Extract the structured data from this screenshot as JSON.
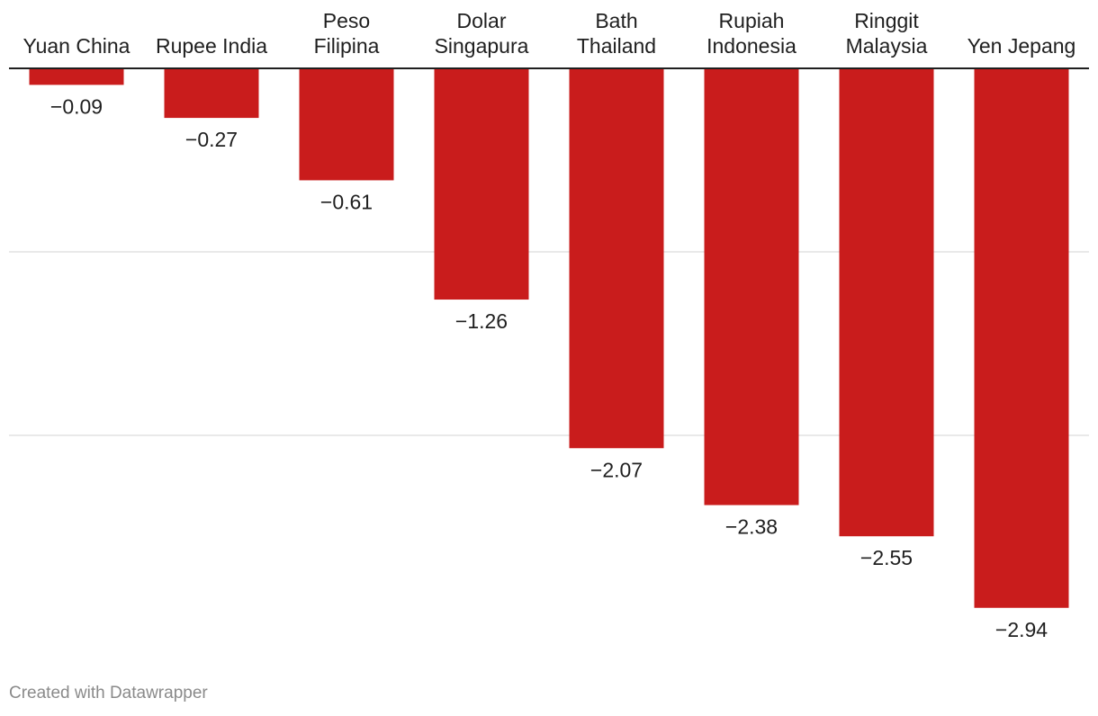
{
  "chart_data": {
    "type": "bar",
    "categories": [
      [
        "Yuan China"
      ],
      [
        "Rupee India"
      ],
      [
        "Peso",
        "Filipina"
      ],
      [
        "Dolar",
        "Singapura"
      ],
      [
        "Bath",
        "Thailand"
      ],
      [
        "Rupiah",
        "Indonesia"
      ],
      [
        "Ringgit",
        "Malaysia"
      ],
      [
        "Yen Jepang"
      ]
    ],
    "values": [
      -0.09,
      -0.27,
      -0.61,
      -1.26,
      -2.07,
      -2.38,
      -2.55,
      -2.94
    ],
    "value_labels": [
      "−0.09",
      "−0.27",
      "−0.61",
      "−1.26",
      "−2.07",
      "−2.38",
      "−2.55",
      "−2.94"
    ],
    "ylim": [
      -2.94,
      0
    ],
    "gridlines": [
      0,
      -1,
      -2
    ],
    "grid": true,
    "bar_color": "#c91c1c",
    "title": "",
    "xlabel": "",
    "ylabel": ""
  },
  "footer": {
    "credit": "Created with Datawrapper"
  }
}
